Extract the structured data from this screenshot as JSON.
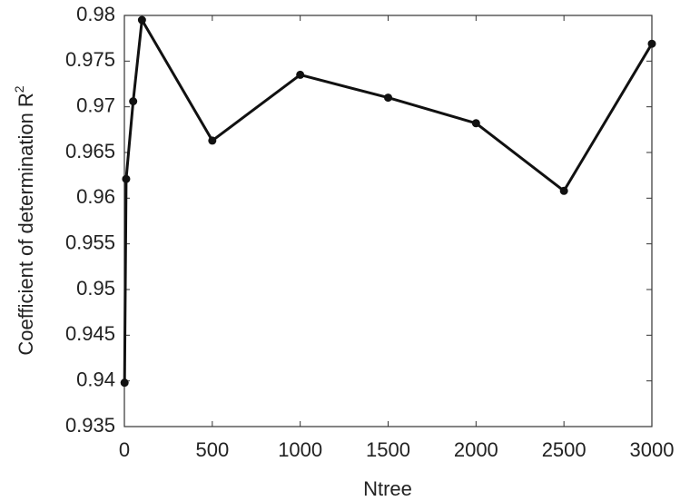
{
  "chart_data": {
    "type": "line",
    "x_label": "Ntree",
    "y_label": {
      "text": "Coefficient of determination R",
      "sup": "2"
    },
    "x": [
      1,
      10,
      50,
      100,
      500,
      1000,
      1500,
      2000,
      2500,
      3000
    ],
    "series": [
      {
        "color": "#111111",
        "values": [
          0.9398,
          0.9621,
          0.9706,
          0.9795,
          0.9663,
          0.9735,
          0.971,
          0.9682,
          0.9608,
          0.9769
        ]
      }
    ],
    "xlim": [
      0,
      3000
    ],
    "xticks": [
      0,
      500,
      1000,
      1500,
      2000,
      2500,
      3000
    ],
    "ylim": [
      0.935,
      0.98
    ],
    "yticks": [
      0.935,
      0.94,
      0.945,
      0.95,
      0.955,
      0.96,
      0.965,
      0.97,
      0.975,
      0.98
    ],
    "grid": false,
    "markers": true
  }
}
